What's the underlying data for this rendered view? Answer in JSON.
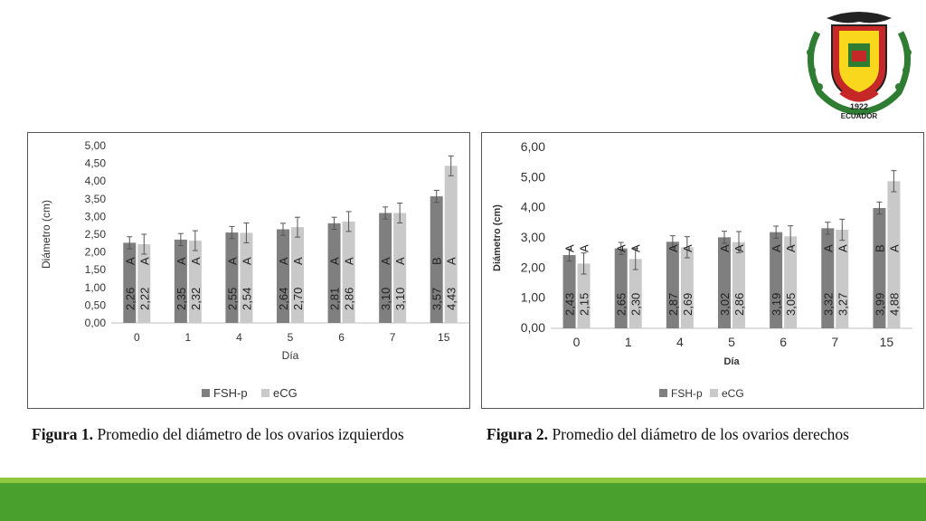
{
  "logo": {
    "year": "1922",
    "country": "ECUADOR"
  },
  "captions": [
    {
      "label": "Figura 1.",
      "text": " Promedio del diámetro de los ovarios izquierdos"
    },
    {
      "label": "Figura 2.",
      "text": " Promedio del diámetro de los ovarios derechos"
    }
  ],
  "colors": {
    "fsh": "#7f7f7f",
    "ecg": "#c9c9c9",
    "band_light": "#8fc73e",
    "band_dark": "#4aa02c"
  },
  "chart_data": [
    {
      "type": "bar",
      "title": "",
      "xlabel": "Día",
      "ylabel": "Diámetro (cm)",
      "ylim": [
        0,
        5
      ],
      "yticks": [
        "0,00",
        "0,50",
        "1,00",
        "1,50",
        "2,00",
        "2,50",
        "3,00",
        "3,50",
        "4,00",
        "4,50",
        "5,00"
      ],
      "ytick_values": [
        0,
        0.5,
        1,
        1.5,
        2,
        2.5,
        3,
        3.5,
        4,
        4.5,
        5
      ],
      "categories": [
        "0",
        "1",
        "4",
        "5",
        "6",
        "7",
        "15"
      ],
      "grid": false,
      "legend": "bottom",
      "series": [
        {
          "name": "FSH-p",
          "values": [
            2.26,
            2.35,
            2.55,
            2.64,
            2.81,
            3.1,
            3.57
          ],
          "errors": [
            0.17,
            0.17,
            0.17,
            0.17,
            0.17,
            0.17,
            0.17
          ],
          "value_labels": [
            "2,26",
            "2,35",
            "2,55",
            "2,64",
            "2,81",
            "3,10",
            "3,57"
          ],
          "letters": [
            "A",
            "A",
            "A",
            "A",
            "A",
            "A",
            "B"
          ]
        },
        {
          "name": "eCG",
          "values": [
            2.22,
            2.32,
            2.54,
            2.7,
            2.86,
            3.1,
            4.43
          ],
          "errors": [
            0.28,
            0.28,
            0.28,
            0.28,
            0.28,
            0.28,
            0.28
          ],
          "value_labels": [
            "2,22",
            "2,32",
            "2,54",
            "2,70",
            "2,86",
            "3,10",
            "4,43"
          ],
          "letters": [
            "A",
            "A",
            "A",
            "A",
            "A",
            "A",
            "A"
          ]
        }
      ]
    },
    {
      "type": "bar",
      "title": "",
      "xlabel": "Día",
      "ylabel": "Diámetro (cm)",
      "ylim": [
        0,
        6
      ],
      "yticks": [
        "0,00",
        "1,00",
        "2,00",
        "3,00",
        "4,00",
        "5,00",
        "6,00"
      ],
      "ytick_values": [
        0,
        1,
        2,
        3,
        4,
        5,
        6
      ],
      "categories": [
        "0",
        "1",
        "4",
        "5",
        "6",
        "7",
        "15"
      ],
      "grid": false,
      "legend": "bottom",
      "series": [
        {
          "name": "FSH-p",
          "values": [
            2.43,
            2.65,
            2.87,
            3.02,
            3.19,
            3.32,
            3.99
          ],
          "errors": [
            0.2,
            0.2,
            0.2,
            0.2,
            0.2,
            0.2,
            0.2
          ],
          "value_labels": [
            "2,43",
            "2,65",
            "2,87",
            "3,02",
            "3,19",
            "3,32",
            "3,99"
          ],
          "letters": [
            "A",
            "A",
            "A",
            "A",
            "A",
            "A",
            "B"
          ]
        },
        {
          "name": "eCG",
          "values": [
            2.15,
            2.3,
            2.69,
            2.86,
            3.05,
            3.27,
            4.88
          ],
          "errors": [
            0.35,
            0.35,
            0.35,
            0.35,
            0.35,
            0.35,
            0.35
          ],
          "value_labels": [
            "2,15",
            "2,30",
            "2,69",
            "2,86",
            "3,05",
            "3,27",
            "4,88"
          ],
          "letters": [
            "A",
            "A",
            "A",
            "A",
            "A",
            "A",
            "A"
          ]
        }
      ]
    }
  ]
}
